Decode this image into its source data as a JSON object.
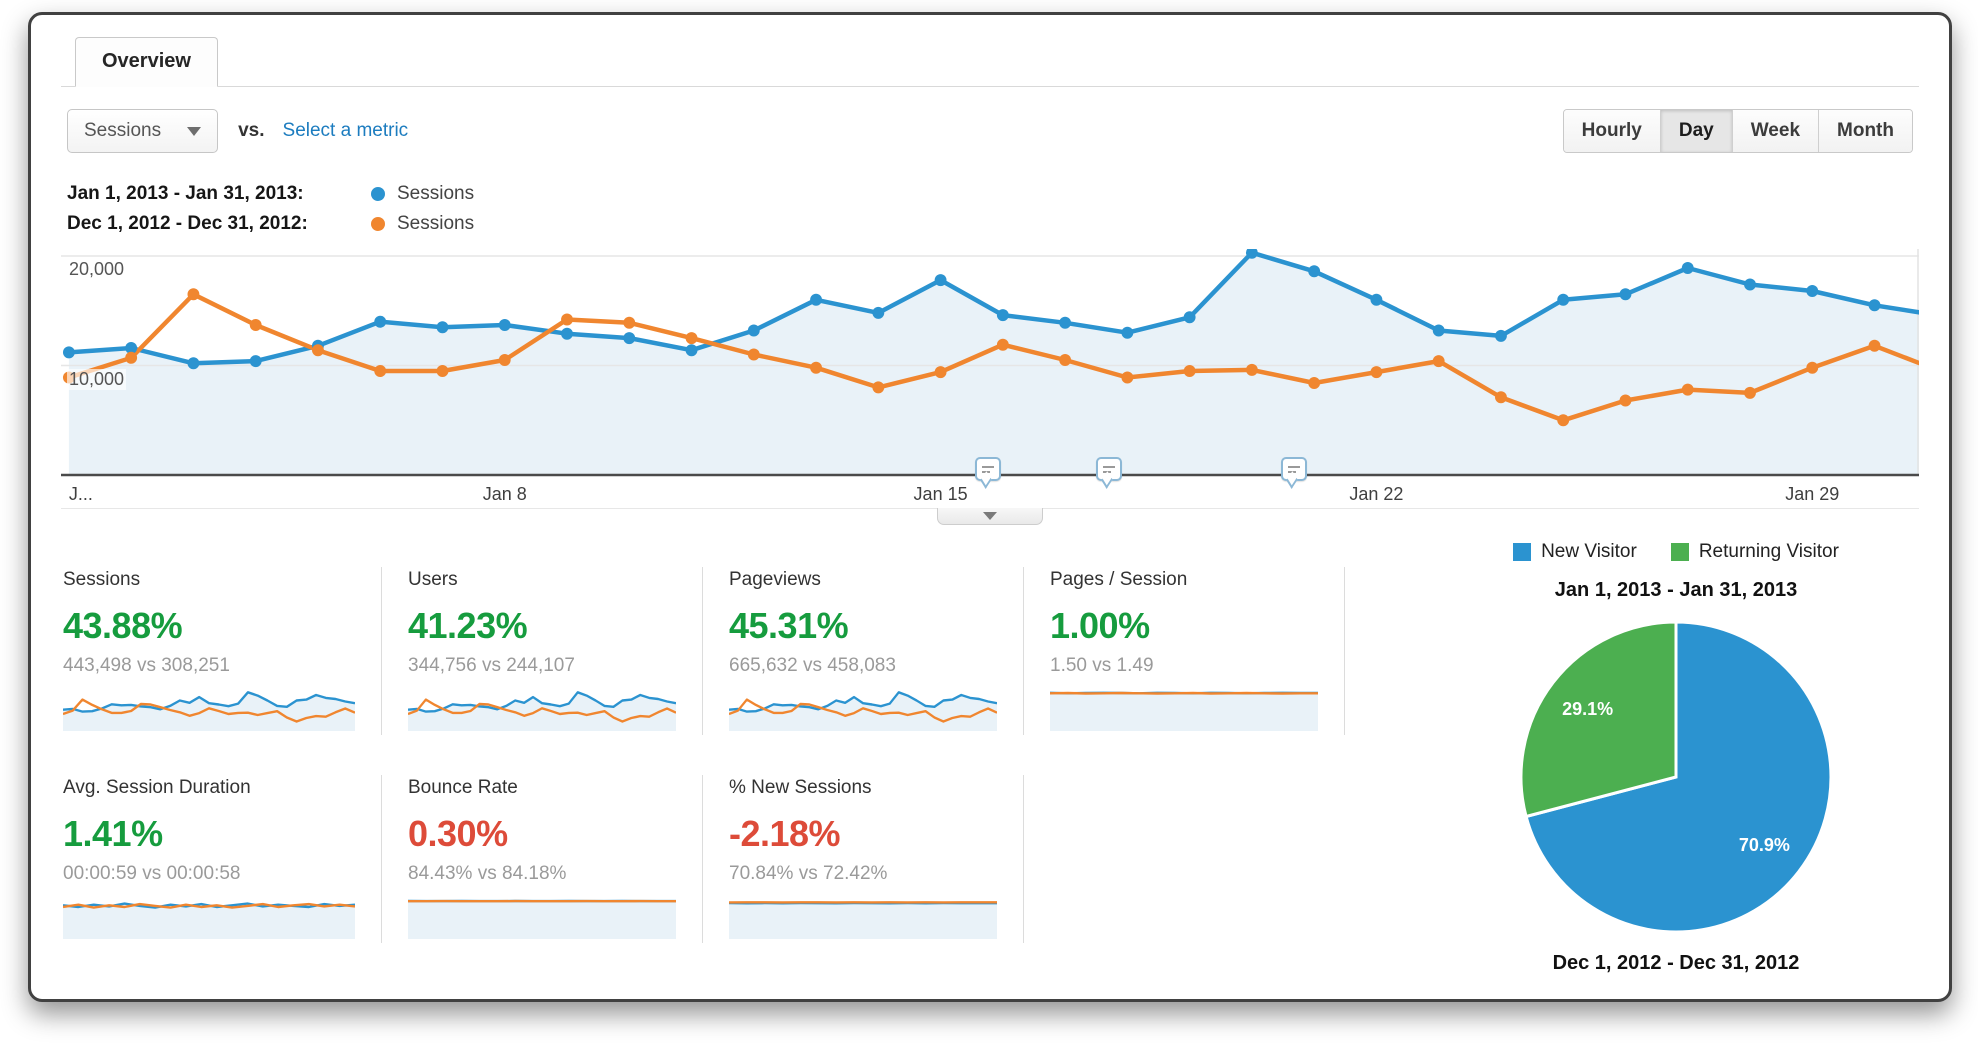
{
  "tab": {
    "label": "Overview"
  },
  "controls": {
    "metric_dropdown": {
      "value": "Sessions"
    },
    "vs_label": "vs.",
    "select_metric_link": "Select a metric",
    "granularity": {
      "options": [
        "Hourly",
        "Day",
        "Week",
        "Month"
      ],
      "selected": "Day"
    }
  },
  "timeline_legend": [
    {
      "date_range": "Jan 1, 2013 - Jan 31, 2013:",
      "metric": "Sessions",
      "color": "#2b93d0"
    },
    {
      "date_range": "Dec 1, 2012 - Dec 31, 2012:",
      "metric": "Sessions",
      "color": "#f0862f"
    }
  ],
  "chart_data": [
    {
      "type": "line",
      "title": "Sessions by day (current vs previous period)",
      "ylim": [
        0,
        21000
      ],
      "grid": "horizontal",
      "y_ticks": [
        {
          "label": "20,000",
          "value": 20000
        },
        {
          "label": "10,000",
          "value": 10000
        }
      ],
      "x_labels": [
        {
          "text": "J...",
          "day": 0
        },
        {
          "text": "Jan 8",
          "day": 7
        },
        {
          "text": "Jan 15",
          "day": 14
        },
        {
          "text": "Jan 22",
          "day": 21
        },
        {
          "text": "Jan 29",
          "day": 28
        }
      ],
      "annotation_marker_days": [
        14.76,
        16.71,
        19.68
      ],
      "series": [
        {
          "name": "Jan 1, 2013 - Jan 31, 2013",
          "metric": "Sessions",
          "color": "#2b93d0",
          "fill": "#e9f2f8",
          "values": [
            11200,
            11600,
            10200,
            10400,
            11800,
            14000,
            13500,
            13700,
            12900,
            12500,
            11400,
            13200,
            16000,
            14800,
            17800,
            14600,
            13900,
            13000,
            14400,
            20300,
            18600,
            16000,
            13200,
            12700,
            16000,
            16500,
            18900,
            17400,
            16800,
            15500,
            14600
          ]
        },
        {
          "name": "Dec 1, 2012 - Dec 31, 2012",
          "metric": "Sessions",
          "color": "#f0862f",
          "values": [
            8900,
            10700,
            16500,
            13700,
            11400,
            9500,
            9500,
            10500,
            14200,
            13900,
            12500,
            11000,
            9800,
            8000,
            9400,
            11900,
            10500,
            8900,
            9500,
            9600,
            8400,
            9400,
            10400,
            7100,
            5000,
            6800,
            7800,
            7500,
            9800,
            11800,
            9600
          ]
        }
      ]
    },
    {
      "type": "pie",
      "legend": [
        "New Visitor",
        "Returning Visitor"
      ],
      "labels": [
        "New Visitor",
        "Returning Visitor"
      ],
      "values": [
        70.9,
        29.1
      ],
      "colors": [
        "#2b93d0",
        "#4caf50"
      ],
      "title_top": "Jan 1, 2013 - Jan 31, 2013",
      "title_bottom": "Dec 1, 2012 - Dec 31, 2012",
      "legend_position": "top"
    }
  ],
  "cards": [
    {
      "title": "Sessions",
      "pct": "43.88%",
      "trend": "up",
      "sub": "443,498 vs 308,251",
      "spark": {
        "use": "timeline"
      }
    },
    {
      "title": "Users",
      "pct": "41.23%",
      "trend": "up",
      "sub": "344,756 vs 244,107",
      "spark": {
        "use": "timeline"
      }
    },
    {
      "title": "Pageviews",
      "pct": "45.31%",
      "trend": "up",
      "sub": "665,632 vs 458,083",
      "spark": {
        "use": "timeline"
      }
    },
    {
      "title": "Pages / Session",
      "pct": "1.00%",
      "trend": "up",
      "sub": "1.50 vs 1.49",
      "spark": {
        "ymax": 1.58,
        "blue": [
          1.51,
          1.49,
          1.5,
          1.51,
          1.5,
          1.49,
          1.51,
          1.5,
          1.49,
          1.51,
          1.5,
          1.49,
          1.5,
          1.51,
          1.5,
          1.5
        ],
        "orange": [
          1.49,
          1.5,
          1.48,
          1.49,
          1.5,
          1.49,
          1.48,
          1.49,
          1.5,
          1.48,
          1.49,
          1.5,
          1.49,
          1.48,
          1.49,
          1.49
        ]
      }
    },
    {
      "title": "Avg. Session Duration",
      "pct": "1.41%",
      "trend": "up",
      "sub": "00:00:59 vs 00:00:58",
      "spark": {
        "ymax": 70,
        "blue": [
          59,
          56,
          60,
          57,
          62,
          58,
          55,
          60,
          57,
          61,
          56,
          59,
          62,
          57,
          60,
          58,
          56,
          61,
          58,
          60
        ],
        "orange": [
          56,
          60,
          55,
          59,
          56,
          61,
          58,
          55,
          60,
          56,
          59,
          55,
          58,
          61,
          56,
          59,
          61,
          57,
          60,
          57
        ]
      }
    },
    {
      "title": "Bounce Rate",
      "pct": "0.30%",
      "trend": "down",
      "sub": "84.43% vs 84.18%",
      "spark": {
        "ymax": 89,
        "blue": [
          84.5,
          84.3,
          84.4,
          84.5,
          84.3,
          84.4,
          84.5,
          84.4,
          84.3,
          84.5,
          84.4,
          84.3,
          84.5,
          84.4,
          84.4,
          84.4
        ],
        "orange": [
          84.2,
          84.1,
          84.3,
          84.2,
          84.1,
          84.2,
          84.3,
          84.2,
          84.1,
          84.2,
          84.3,
          84.1,
          84.2,
          84.3,
          84.2,
          84.2
        ]
      }
    },
    {
      "title": "% New Sessions",
      "pct": "-2.18%",
      "trend": "down",
      "sub": "70.84% vs 72.42%",
      "spark": {
        "ymax": 79,
        "blue": [
          70.9,
          70.6,
          71.0,
          70.5,
          70.9,
          70.7,
          70.6,
          71.0,
          70.7,
          70.5,
          70.9,
          70.6,
          71.0,
          70.7,
          70.8,
          70.8
        ],
        "orange": [
          72.3,
          72.5,
          72.4,
          72.2,
          72.5,
          72.4,
          72.3,
          72.5,
          72.3,
          72.4,
          72.2,
          72.5,
          72.3,
          72.4,
          72.4,
          72.4
        ]
      }
    }
  ]
}
